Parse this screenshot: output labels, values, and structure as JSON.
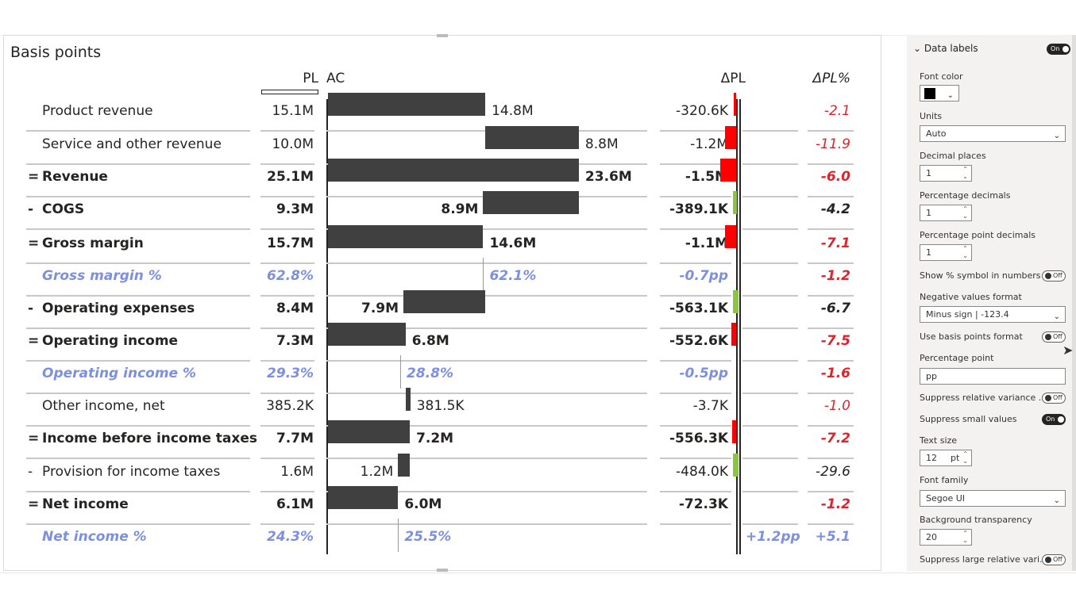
{
  "visual": {
    "title": "Basis points",
    "col_pl": "PL",
    "col_ac": "AC",
    "col_dpl": "ΔPL",
    "col_dplpct": "ΔPL%"
  },
  "rows": [
    {
      "prefix": "",
      "label": "Product revenue",
      "pl": "15.1M",
      "ac": "14.8M",
      "dpl": "-320.6K",
      "dplpct": "-2.1"
    },
    {
      "prefix": "",
      "label": "Service and other revenue",
      "pl": "10.0M",
      "ac": "8.8M",
      "dpl": "-1.2M",
      "dplpct": "-11.9"
    },
    {
      "prefix": "=",
      "label": "Revenue",
      "pl": "25.1M",
      "ac": "23.6M",
      "dpl": "-1.5M",
      "dplpct": "-6.0"
    },
    {
      "prefix": "-",
      "label": "COGS",
      "pl": "9.3M",
      "ac": "8.9M",
      "dpl": "-389.1K",
      "dplpct": "-4.2"
    },
    {
      "prefix": "=",
      "label": "Gross margin",
      "pl": "15.7M",
      "ac": "14.6M",
      "dpl": "-1.1M",
      "dplpct": "-7.1"
    },
    {
      "prefix": "",
      "label": "Gross margin %",
      "pl": "62.8%",
      "ac": "62.1%",
      "dpl": "-0.7pp",
      "dplpct": "-1.2"
    },
    {
      "prefix": "-",
      "label": "Operating expenses",
      "pl": "8.4M",
      "ac": "7.9M",
      "dpl": "-563.1K",
      "dplpct": "-6.7"
    },
    {
      "prefix": "=",
      "label": "Operating income",
      "pl": "7.3M",
      "ac": "6.8M",
      "dpl": "-552.6K",
      "dplpct": "-7.5"
    },
    {
      "prefix": "",
      "label": "Operating income %",
      "pl": "29.3%",
      "ac": "28.8%",
      "dpl": "-0.5pp",
      "dplpct": "-1.6"
    },
    {
      "prefix": "",
      "label": "Other income, net",
      "pl": "385.2K",
      "ac": "381.5K",
      "dpl": "-3.7K",
      "dplpct": "-1.0"
    },
    {
      "prefix": "=",
      "label": "Income before income taxes",
      "pl": "7.7M",
      "ac": "7.2M",
      "dpl": "-556.3K",
      "dplpct": "-7.2"
    },
    {
      "prefix": "-",
      "label": "Provision for income taxes",
      "pl": "1.6M",
      "ac": "1.2M",
      "dpl": "-484.0K",
      "dplpct": "-29.6"
    },
    {
      "prefix": "=",
      "label": "Net income",
      "pl": "6.1M",
      "ac": "6.0M",
      "dpl": "-72.3K",
      "dplpct": "-1.2"
    },
    {
      "prefix": "",
      "label": "Net income %",
      "pl": "24.3%",
      "ac": "25.5%",
      "dpl": "+1.2pp",
      "dplpct": "+5.1"
    }
  ],
  "pane": {
    "section_title": "Data labels",
    "section_toggle": "On",
    "font_color_label": "Font color",
    "font_color_value": "#000000",
    "units_label": "Units",
    "units_value": "Auto",
    "decimal_places_label": "Decimal places",
    "decimal_places_value": "1",
    "percentage_decimals_label": "Percentage decimals",
    "percentage_decimals_value": "1",
    "pp_decimals_label": "Percentage point decimals",
    "pp_decimals_value": "1",
    "show_pct_label": "Show % symbol in numbers",
    "show_pct_toggle": "Off",
    "neg_format_label": "Negative values format",
    "neg_format_value": "Minus sign | -123.4",
    "basis_points_label": "Use basis points format",
    "basis_points_toggle": "Off",
    "pp_label": "Percentage point",
    "pp_value": "pp",
    "suppress_rel_label": "Suppress relative variance ...",
    "suppress_rel_toggle": "Off",
    "suppress_small_label": "Suppress small values",
    "suppress_small_toggle": "On",
    "text_size_label": "Text size",
    "text_size_value": "12",
    "text_size_unit": "pt",
    "font_family_label": "Font family",
    "font_family_value": "Segoe UI",
    "bg_transparency_label": "Background transparency",
    "bg_transparency_value": "20",
    "suppress_large_label": "Suppress large relative vari...",
    "suppress_large_toggle": "Off"
  }
}
